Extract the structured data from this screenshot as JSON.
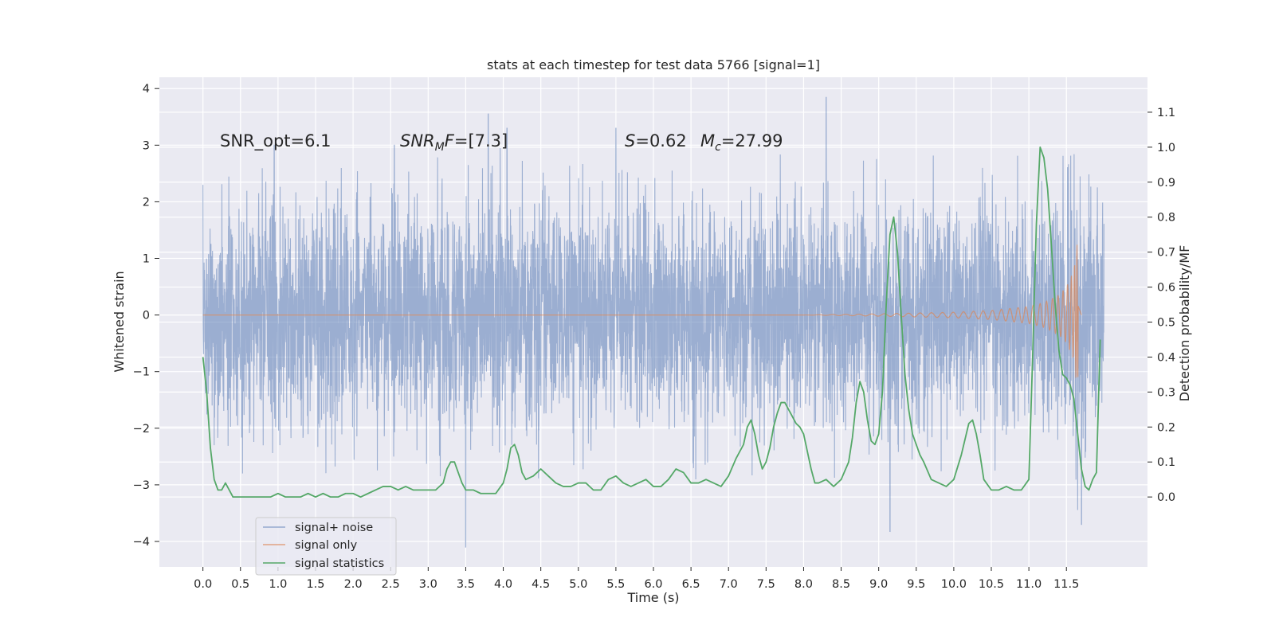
{
  "chart_data": {
    "type": "line",
    "title": "stats at each timestep for test data 5766 [signal=1]",
    "xlabel": "Time (s)",
    "ylabel_left": "Whitened strain",
    "ylabel_right": "Detection probability/MF",
    "x_ticks": [
      "0.0",
      "0.5",
      "1.0",
      "1.5",
      "2.0",
      "2.5",
      "3.0",
      "3.5",
      "4.0",
      "4.5",
      "5.0",
      "5.5",
      "6.0",
      "6.5",
      "7.0",
      "7.5",
      "8.0",
      "8.5",
      "9.0",
      "9.5",
      "10.0",
      "10.5",
      "11.0",
      "11.5"
    ],
    "y_left_ticks": [
      "4",
      "3",
      "2",
      "1",
      "0",
      "−1",
      "−2",
      "−3",
      "−4"
    ],
    "y_right_ticks": [
      "1.1",
      "1.0",
      "0.9",
      "0.8",
      "0.7",
      "0.6",
      "0.5",
      "0.4",
      "0.3",
      "0.2",
      "0.1",
      "0.0"
    ],
    "xlim": [
      -0.58,
      12.58
    ],
    "ylim_left": [
      -4.45,
      4.2
    ],
    "ylim_right": [
      -0.2,
      1.2
    ],
    "grid": true,
    "legend_position": "lower-left",
    "annotations": {
      "snr_opt": "SNR_opt=6.1",
      "snr_mf": "[7.3]",
      "s_value": "=0.62",
      "mc_value": "=27.99"
    },
    "colors": {
      "background": "#eaeaf2",
      "grid": "#ffffff",
      "signal_noise": "#4c72b0",
      "signal_only": "#dd8452",
      "signal_statistics": "#55a868"
    },
    "series": [
      {
        "name": "signal+ noise",
        "axis": "left",
        "description": "whitened strain noise, dense band with peaks up to about ±3.8",
        "x_range": [
          0.0,
          12.0
        ],
        "envelope_peak_values": [
          {
            "x": 0.0,
            "y": 2.3
          },
          {
            "x": 0.95,
            "y": 3.0
          },
          {
            "x": 2.55,
            "y": 3.0
          },
          {
            "x": 3.8,
            "y": 3.55
          },
          {
            "x": 4.05,
            "y": 3.3
          },
          {
            "x": 5.5,
            "y": 3.3
          },
          {
            "x": 8.3,
            "y": 3.85
          },
          {
            "x": 11.7,
            "y": 3.4
          },
          {
            "x": 3.5,
            "y": -4.1
          },
          {
            "x": 9.15,
            "y": -3.8
          },
          {
            "x": 11.7,
            "y": -3.7
          }
        ]
      },
      {
        "name": "signal only",
        "axis": "left",
        "description": "chirp signal, near zero until ~9 s, growing to about 1.4 at 11.65 s",
        "x": [
          0.0,
          8.0,
          9.0,
          10.0,
          10.5,
          11.0,
          11.2,
          11.4,
          11.5,
          11.6,
          11.65,
          11.7
        ],
        "amplitude": [
          0.0,
          0.0,
          0.02,
          0.05,
          0.08,
          0.15,
          0.22,
          0.35,
          0.5,
          0.8,
          1.4,
          0.0
        ]
      },
      {
        "name": "signal statistics",
        "axis": "right",
        "x": [
          0.0,
          0.05,
          0.1,
          0.15,
          0.2,
          0.25,
          0.3,
          0.35,
          0.4,
          0.5,
          0.6,
          0.7,
          0.8,
          0.9,
          1.0,
          1.1,
          1.2,
          1.3,
          1.4,
          1.5,
          1.6,
          1.7,
          1.8,
          1.9,
          2.0,
          2.1,
          2.2,
          2.3,
          2.4,
          2.5,
          2.6,
          2.7,
          2.8,
          2.9,
          3.0,
          3.1,
          3.2,
          3.25,
          3.3,
          3.35,
          3.4,
          3.45,
          3.5,
          3.6,
          3.7,
          3.8,
          3.9,
          4.0,
          4.05,
          4.1,
          4.15,
          4.2,
          4.25,
          4.3,
          4.4,
          4.5,
          4.6,
          4.7,
          4.8,
          4.9,
          5.0,
          5.1,
          5.2,
          5.3,
          5.4,
          5.5,
          5.6,
          5.7,
          5.8,
          5.9,
          6.0,
          6.1,
          6.2,
          6.3,
          6.4,
          6.5,
          6.6,
          6.7,
          6.8,
          6.9,
          7.0,
          7.1,
          7.2,
          7.25,
          7.3,
          7.35,
          7.4,
          7.45,
          7.5,
          7.55,
          7.6,
          7.65,
          7.7,
          7.75,
          7.8,
          7.85,
          7.9,
          7.95,
          8.0,
          8.05,
          8.1,
          8.15,
          8.2,
          8.3,
          8.4,
          8.5,
          8.6,
          8.65,
          8.7,
          8.75,
          8.8,
          8.85,
          8.9,
          8.95,
          9.0,
          9.05,
          9.1,
          9.15,
          9.2,
          9.25,
          9.3,
          9.35,
          9.4,
          9.45,
          9.5,
          9.55,
          9.6,
          9.7,
          9.8,
          9.9,
          10.0,
          10.1,
          10.2,
          10.25,
          10.3,
          10.35,
          10.4,
          10.5,
          10.6,
          10.7,
          10.8,
          10.9,
          11.0,
          11.05,
          11.1,
          11.15,
          11.2,
          11.25,
          11.3,
          11.35,
          11.4,
          11.45,
          11.5,
          11.55,
          11.6,
          11.65,
          11.7,
          11.75,
          11.8,
          11.85,
          11.9,
          11.95
        ],
        "values": [
          0.4,
          0.3,
          0.14,
          0.05,
          0.02,
          0.02,
          0.04,
          0.02,
          0.0,
          0.0,
          0.0,
          0.0,
          0.0,
          0.0,
          0.01,
          0.0,
          0.0,
          0.0,
          0.01,
          0.0,
          0.01,
          0.0,
          0.0,
          0.01,
          0.01,
          0.0,
          0.01,
          0.02,
          0.03,
          0.03,
          0.02,
          0.03,
          0.02,
          0.02,
          0.02,
          0.02,
          0.04,
          0.08,
          0.1,
          0.1,
          0.07,
          0.04,
          0.02,
          0.02,
          0.01,
          0.01,
          0.01,
          0.04,
          0.08,
          0.14,
          0.15,
          0.12,
          0.07,
          0.05,
          0.06,
          0.08,
          0.06,
          0.04,
          0.03,
          0.03,
          0.04,
          0.04,
          0.02,
          0.02,
          0.05,
          0.06,
          0.04,
          0.03,
          0.04,
          0.05,
          0.03,
          0.03,
          0.05,
          0.08,
          0.07,
          0.04,
          0.04,
          0.05,
          0.04,
          0.03,
          0.06,
          0.11,
          0.15,
          0.2,
          0.22,
          0.18,
          0.12,
          0.08,
          0.1,
          0.14,
          0.2,
          0.24,
          0.27,
          0.27,
          0.25,
          0.23,
          0.21,
          0.2,
          0.18,
          0.13,
          0.08,
          0.04,
          0.04,
          0.05,
          0.03,
          0.05,
          0.1,
          0.17,
          0.27,
          0.33,
          0.3,
          0.22,
          0.16,
          0.15,
          0.18,
          0.3,
          0.55,
          0.75,
          0.8,
          0.7,
          0.52,
          0.35,
          0.25,
          0.18,
          0.15,
          0.12,
          0.1,
          0.05,
          0.04,
          0.03,
          0.05,
          0.12,
          0.21,
          0.22,
          0.18,
          0.12,
          0.05,
          0.02,
          0.02,
          0.03,
          0.02,
          0.02,
          0.05,
          0.4,
          0.78,
          1.0,
          0.97,
          0.88,
          0.72,
          0.55,
          0.42,
          0.35,
          0.34,
          0.32,
          0.28,
          0.18,
          0.08,
          0.03,
          0.02,
          0.05,
          0.07,
          0.45
        ]
      }
    ]
  }
}
